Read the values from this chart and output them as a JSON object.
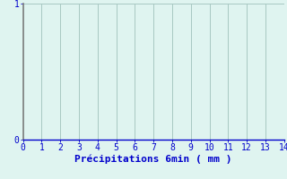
{
  "title": "",
  "xlabel": "Précipitations 6min ( mm )",
  "ylabel": "",
  "xlim": [
    0,
    14
  ],
  "ylim": [
    0,
    1
  ],
  "xticks": [
    0,
    1,
    2,
    3,
    4,
    5,
    6,
    7,
    8,
    9,
    10,
    11,
    12,
    13,
    14
  ],
  "yticks": [
    0,
    1
  ],
  "background_color": "#dff4f0",
  "grid_color": "#a8c8c2",
  "axis_color": "#0000cc",
  "spine_color": "#808080",
  "text_color": "#0000cc",
  "xlabel_fontsize": 8,
  "tick_fontsize": 7
}
